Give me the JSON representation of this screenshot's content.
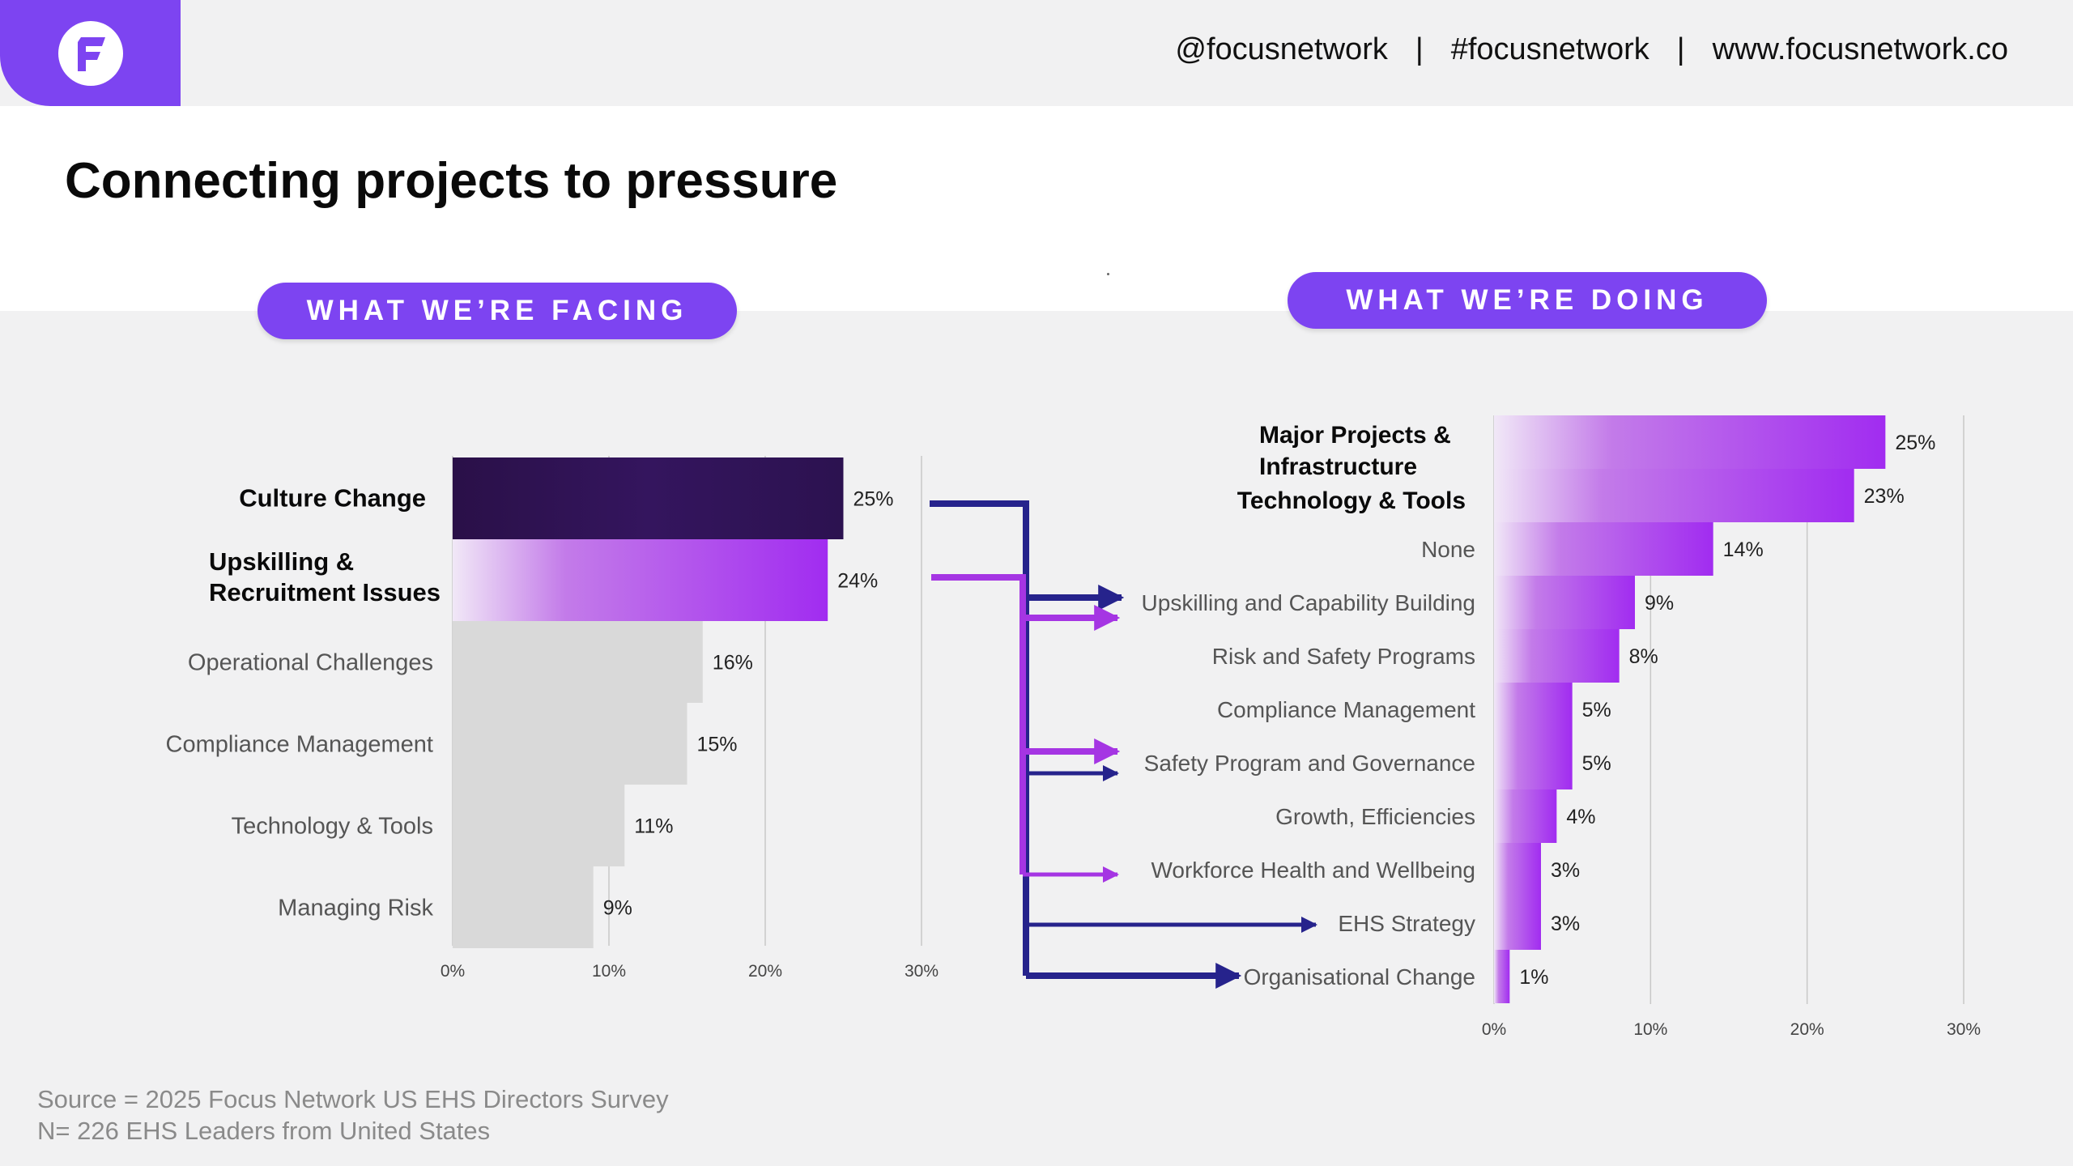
{
  "header": {
    "social_handle": "@focusnetwork",
    "hashtag": "#focusnetwork",
    "website": "www.focusnetwork.co",
    "separator": "|",
    "logo_icon": "focus-network-logo"
  },
  "title": "Connecting projects to pressure",
  "pills": {
    "left": "WHAT WE’RE FACING",
    "right": "WHAT WE’RE DOING"
  },
  "source": {
    "line1": "Source = 2025 Focus Network US EHS Directors Survey",
    "line2": "N= 226 EHS Leaders from United States"
  },
  "colors": {
    "brand_purple": "#7d44f1",
    "dark_bar": "#2c1250",
    "gradient_end": "#a12cf0",
    "gray_bar": "#d9d9d9",
    "navy_arrow": "#26238c",
    "purple_arrow": "#a535e3"
  },
  "chart_data": [
    {
      "type": "bar",
      "orientation": "horizontal",
      "title": "WHAT WE’RE FACING",
      "categories": [
        "Culture Change",
        "Upskilling & Recruitment Issues",
        "Operational Challenges",
        "Compliance Management",
        "Technology & Tools",
        "Managing Risk"
      ],
      "values": [
        25,
        24,
        16,
        15,
        11,
        9
      ],
      "value_labels": [
        "25%",
        "24%",
        "16%",
        "15%",
        "11%",
        "9%"
      ],
      "highlighted": [
        true,
        true,
        false,
        false,
        false,
        false
      ],
      "xlim": [
        0,
        30
      ],
      "xticks": [
        "0%",
        "10%",
        "20%",
        "30%"
      ],
      "grid": true
    },
    {
      "type": "bar",
      "orientation": "horizontal",
      "title": "WHAT WE’RE DOING",
      "categories": [
        "Major Projects & Infrastructure",
        "Technology & Tools",
        "None",
        "Upskilling and Capability Building",
        "Risk and Safety Programs",
        "Compliance Management",
        "Safety Program and Governance",
        "Growth, Efficiencies",
        "Workforce Health and Wellbeing",
        "EHS Strategy",
        "Organisational Change"
      ],
      "values": [
        25,
        23,
        14,
        9,
        8,
        5,
        5,
        4,
        3,
        3,
        1
      ],
      "value_labels": [
        "25%",
        "23%",
        "14%",
        "9%",
        "8%",
        "5%",
        "5%",
        "4%",
        "3%",
        "3%",
        "1%"
      ],
      "highlighted": [
        true,
        true,
        false,
        false,
        false,
        false,
        false,
        false,
        false,
        false,
        false
      ],
      "xlim": [
        0,
        30
      ],
      "xticks": [
        "0%",
        "10%",
        "20%",
        "30%"
      ],
      "grid": true
    }
  ],
  "connectors": [
    {
      "from": "Culture Change",
      "to": [
        "Upskilling and Capability Building",
        "Safety Program and Governance",
        "EHS Strategy",
        "Organisational Change"
      ],
      "color": "navy"
    },
    {
      "from": "Upskilling & Recruitment Issues",
      "to": [
        "Upskilling and Capability Building",
        "Safety Program and Governance",
        "Workforce Health and Wellbeing"
      ],
      "color": "purple"
    }
  ]
}
